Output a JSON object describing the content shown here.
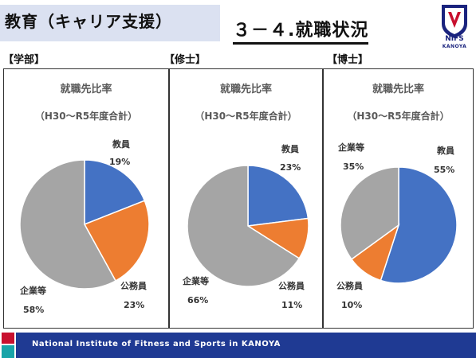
{
  "header": {
    "title": "教育（キャリア支援）",
    "subtitle": "３－４.就職状況",
    "logo_main": "NIFS",
    "logo_sub": "KANOYA"
  },
  "footer": {
    "text": "National Institute of Fitness and Sports in KANOYA"
  },
  "colors": {
    "blue": "#4472c4",
    "orange": "#ed7d31",
    "gray": "#a5a5a5",
    "footer": "#1f3a93"
  },
  "panels": [
    {
      "label": "【学部】"
    },
    {
      "label": "【修士】"
    },
    {
      "label": "【博士】"
    }
  ],
  "chart_data": [
    {
      "type": "pie",
      "title": "就職先比率",
      "subtitle": "（H30～R5年度合計）",
      "slices": [
        {
          "label": "教員",
          "value": 19,
          "display": "19%",
          "color": "#4472c4"
        },
        {
          "label": "公務員",
          "value": 23,
          "display": "23%",
          "color": "#ed7d31"
        },
        {
          "label": "企業等",
          "value": 58,
          "display": "58%",
          "color": "#a5a5a5"
        }
      ]
    },
    {
      "type": "pie",
      "title": "就職先比率",
      "subtitle": "（H30～R5年度合計）",
      "slices": [
        {
          "label": "教員",
          "value": 23,
          "display": "23%",
          "color": "#4472c4"
        },
        {
          "label": "公務員",
          "value": 11,
          "display": "11%",
          "color": "#ed7d31"
        },
        {
          "label": "企業等",
          "value": 66,
          "display": "66%",
          "color": "#a5a5a5"
        }
      ]
    },
    {
      "type": "pie",
      "title": "就職先比率",
      "subtitle": "（H30～R5年度合計）",
      "slices": [
        {
          "label": "教員",
          "value": 55,
          "display": "55%",
          "color": "#4472c4"
        },
        {
          "label": "公務員",
          "value": 10,
          "display": "10%",
          "color": "#ed7d31"
        },
        {
          "label": "企業等",
          "value": 35,
          "display": "35%",
          "color": "#a5a5a5"
        }
      ]
    }
  ]
}
